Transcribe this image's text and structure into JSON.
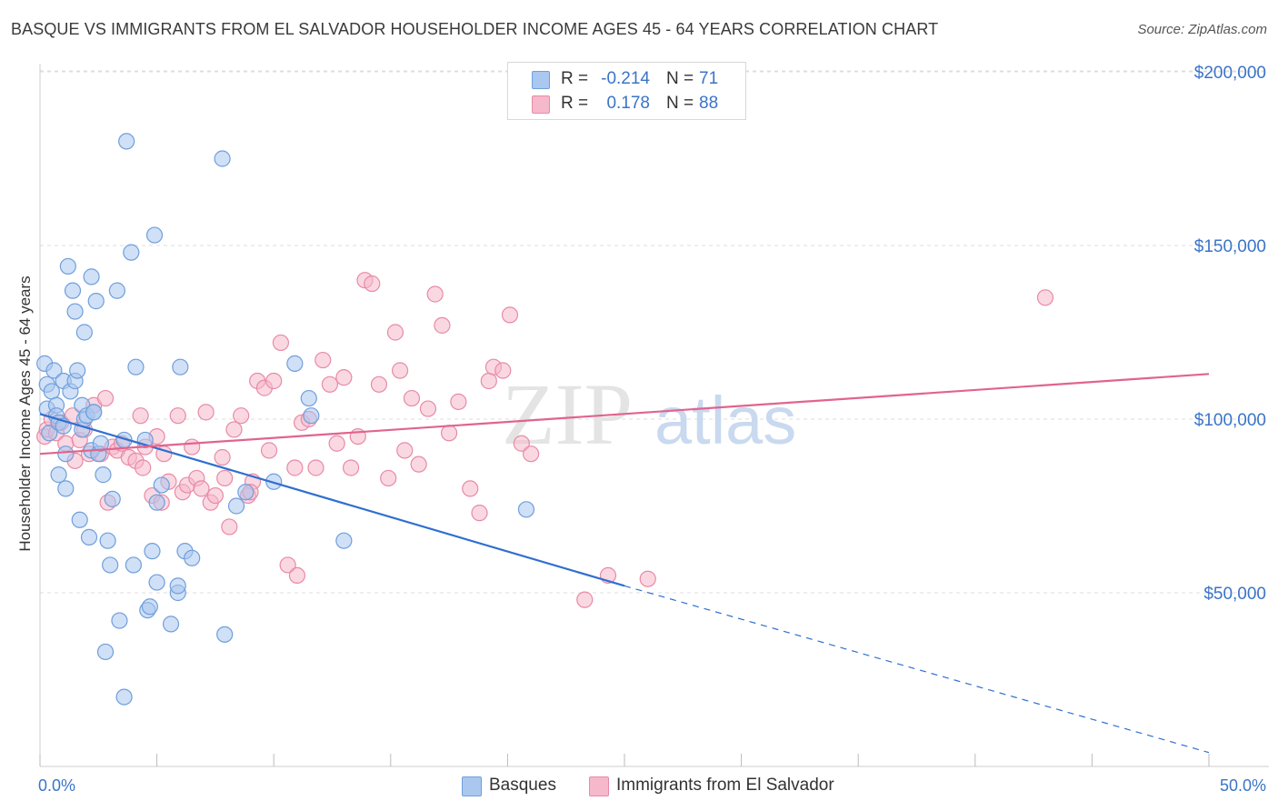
{
  "title": "BASQUE VS IMMIGRANTS FROM EL SALVADOR HOUSEHOLDER INCOME AGES 45 - 64 YEARS CORRELATION CHART",
  "source": "Source: ZipAtlas.com",
  "watermark": {
    "zip": "ZIP",
    "atlas": "atlas"
  },
  "legend": {
    "rows": [
      {
        "r_label": "R =",
        "r_value": "-0.214",
        "n_label": "N =",
        "n_value": "71"
      },
      {
        "r_label": "R =",
        "r_value": "0.178",
        "n_label": "N =",
        "n_value": "88"
      }
    ]
  },
  "bottom_legend": {
    "series1": "Basques",
    "series2": "Immigrants from El Salvador"
  },
  "colors": {
    "blue_fill": "#a9c7ef",
    "blue_stroke": "#6f9fdc",
    "blue_line": "#2f6fd0",
    "pink_fill": "#f6b8cb",
    "pink_stroke": "#e88aa7",
    "pink_line": "#e0648f",
    "label_blue": "#3a74c8",
    "grid": "#dddddd"
  },
  "chart_data": {
    "type": "scatter",
    "title": "BASQUE VS IMMIGRANTS FROM EL SALVADOR HOUSEHOLDER INCOME AGES 45 - 64 YEARS CORRELATION CHART",
    "xlabel": "",
    "ylabel": "Householder Income Ages 45 - 64 years",
    "xlim": [
      0,
      50
    ],
    "ylim": [
      0,
      210000
    ],
    "x_tick_labels": [
      "0.0%",
      "50.0%"
    ],
    "y_ticks": [
      50000,
      100000,
      150000,
      200000
    ],
    "y_tick_labels": [
      "$50,000",
      "$100,000",
      "$150,000",
      "$200,000"
    ],
    "grid": true,
    "legend_placement": "top-center",
    "series": [
      {
        "name": "Basques",
        "color": "#a9c7ef",
        "trend": {
          "x": [
            0.0,
            25.0,
            50.0
          ],
          "y": [
            101500,
            52000,
            4000
          ],
          "solid_until_x": 25.0
        },
        "points": [
          [
            0.2,
            116000
          ],
          [
            0.3,
            110000
          ],
          [
            0.3,
            103000
          ],
          [
            0.4,
            96000
          ],
          [
            0.5,
            108000
          ],
          [
            0.6,
            114000
          ],
          [
            0.7,
            104000
          ],
          [
            0.7,
            101000
          ],
          [
            0.8,
            99000
          ],
          [
            0.8,
            84000
          ],
          [
            1.0,
            111000
          ],
          [
            1.0,
            98000
          ],
          [
            1.1,
            80000
          ],
          [
            1.1,
            90000
          ],
          [
            1.2,
            144000
          ],
          [
            1.3,
            108000
          ],
          [
            1.4,
            137000
          ],
          [
            1.5,
            111000
          ],
          [
            1.5,
            131000
          ],
          [
            1.6,
            114000
          ],
          [
            1.7,
            71000
          ],
          [
            1.8,
            104000
          ],
          [
            1.8,
            97000
          ],
          [
            1.9,
            100000
          ],
          [
            1.9,
            125000
          ],
          [
            2.0,
            101000
          ],
          [
            2.1,
            66000
          ],
          [
            2.2,
            141000
          ],
          [
            2.2,
            91000
          ],
          [
            2.3,
            102000
          ],
          [
            2.3,
            102000
          ],
          [
            2.4,
            134000
          ],
          [
            2.5,
            90000
          ],
          [
            2.6,
            93000
          ],
          [
            2.7,
            84000
          ],
          [
            2.8,
            33000
          ],
          [
            2.9,
            65000
          ],
          [
            3.0,
            58000
          ],
          [
            3.1,
            77000
          ],
          [
            3.3,
            137000
          ],
          [
            3.4,
            42000
          ],
          [
            3.6,
            20000
          ],
          [
            3.7,
            180000
          ],
          [
            3.9,
            148000
          ],
          [
            4.0,
            58000
          ],
          [
            4.1,
            115000
          ],
          [
            4.5,
            94000
          ],
          [
            4.6,
            45000
          ],
          [
            4.7,
            46000
          ],
          [
            4.8,
            62000
          ],
          [
            4.9,
            153000
          ],
          [
            5.0,
            76000
          ],
          [
            5.0,
            53000
          ],
          [
            5.2,
            81000
          ],
          [
            5.6,
            41000
          ],
          [
            5.9,
            50000
          ],
          [
            5.9,
            52000
          ],
          [
            6.0,
            115000
          ],
          [
            6.2,
            62000
          ],
          [
            6.5,
            60000
          ],
          [
            7.9,
            38000
          ],
          [
            7.8,
            175000
          ],
          [
            8.4,
            75000
          ],
          [
            8.8,
            79000
          ],
          [
            10.9,
            116000
          ],
          [
            11.5,
            106000
          ],
          [
            11.6,
            101000
          ],
          [
            13.0,
            65000
          ],
          [
            20.8,
            74000
          ],
          [
            10.0,
            82000
          ],
          [
            3.6,
            94000
          ]
        ]
      },
      {
        "name": "Immigrants from El Salvador",
        "color": "#f6b8cb",
        "trend": {
          "x": [
            0.0,
            50.0
          ],
          "y": [
            90000,
            113000
          ]
        },
        "points": [
          [
            0.2,
            95000
          ],
          [
            0.3,
            97000
          ],
          [
            0.5,
            100000
          ],
          [
            0.7,
            96000
          ],
          [
            0.9,
            99000
          ],
          [
            1.1,
            93000
          ],
          [
            1.4,
            101000
          ],
          [
            1.5,
            88000
          ],
          [
            1.7,
            94000
          ],
          [
            1.9,
            97000
          ],
          [
            2.1,
            90000
          ],
          [
            2.3,
            104000
          ],
          [
            2.6,
            90000
          ],
          [
            2.8,
            106000
          ],
          [
            2.9,
            76000
          ],
          [
            3.1,
            92000
          ],
          [
            3.3,
            91000
          ],
          [
            3.5,
            93000
          ],
          [
            3.8,
            89000
          ],
          [
            4.1,
            88000
          ],
          [
            4.3,
            101000
          ],
          [
            4.4,
            86000
          ],
          [
            4.5,
            92000
          ],
          [
            4.8,
            78000
          ],
          [
            5.0,
            95000
          ],
          [
            5.2,
            76000
          ],
          [
            5.3,
            90000
          ],
          [
            5.5,
            82000
          ],
          [
            5.9,
            101000
          ],
          [
            6.1,
            79000
          ],
          [
            6.3,
            81000
          ],
          [
            6.5,
            92000
          ],
          [
            6.7,
            83000
          ],
          [
            6.9,
            80000
          ],
          [
            7.1,
            102000
          ],
          [
            7.3,
            76000
          ],
          [
            7.5,
            78000
          ],
          [
            7.8,
            89000
          ],
          [
            8.1,
            69000
          ],
          [
            8.3,
            97000
          ],
          [
            8.6,
            101000
          ],
          [
            8.9,
            78000
          ],
          [
            9.1,
            82000
          ],
          [
            9.3,
            111000
          ],
          [
            9.6,
            109000
          ],
          [
            9.8,
            91000
          ],
          [
            10.0,
            111000
          ],
          [
            10.3,
            122000
          ],
          [
            10.6,
            58000
          ],
          [
            10.9,
            86000
          ],
          [
            11.2,
            99000
          ],
          [
            11.5,
            100000
          ],
          [
            11.8,
            86000
          ],
          [
            12.1,
            117000
          ],
          [
            12.4,
            110000
          ],
          [
            12.7,
            93000
          ],
          [
            13.0,
            112000
          ],
          [
            13.3,
            86000
          ],
          [
            13.6,
            95000
          ],
          [
            13.9,
            140000
          ],
          [
            14.2,
            139000
          ],
          [
            14.5,
            110000
          ],
          [
            14.9,
            83000
          ],
          [
            15.2,
            125000
          ],
          [
            15.4,
            114000
          ],
          [
            15.6,
            91000
          ],
          [
            15.9,
            106000
          ],
          [
            16.2,
            87000
          ],
          [
            16.6,
            103000
          ],
          [
            16.9,
            136000
          ],
          [
            17.2,
            127000
          ],
          [
            17.5,
            96000
          ],
          [
            17.9,
            105000
          ],
          [
            18.4,
            80000
          ],
          [
            18.8,
            73000
          ],
          [
            19.2,
            111000
          ],
          [
            19.4,
            115000
          ],
          [
            19.8,
            114000
          ],
          [
            20.1,
            130000
          ],
          [
            20.6,
            93000
          ],
          [
            21.0,
            90000
          ],
          [
            23.3,
            48000
          ],
          [
            24.3,
            55000
          ],
          [
            26.0,
            54000
          ],
          [
            43.0,
            135000
          ],
          [
            7.9,
            83000
          ],
          [
            11.0,
            55000
          ],
          [
            9.0,
            79000
          ]
        ]
      }
    ]
  }
}
